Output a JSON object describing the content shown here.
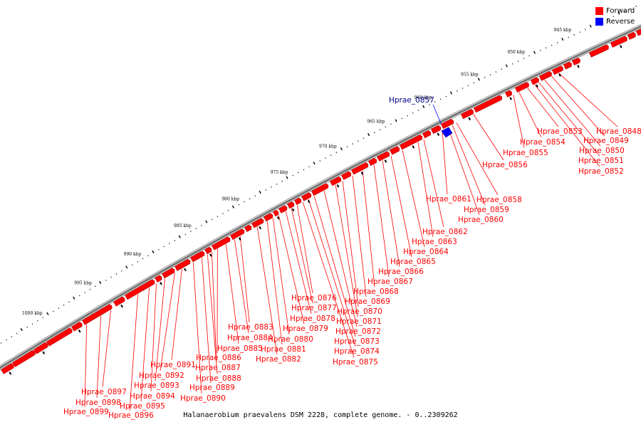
{
  "legend": {
    "forward": {
      "label": "Forward",
      "color": "#ff0000"
    },
    "reverse": {
      "label": "Reverse",
      "color": "#0000ff"
    }
  },
  "caption": "Halanaerobium praevalens DSM 2228, complete genome. - 0..2309262",
  "tick_labels": [
    "945 kbp",
    "950 kbp",
    "955 kbp",
    "960 kbp",
    "965 kbp",
    "970 kbp",
    "975 kbp",
    "980 kbp",
    "985 kbp",
    "990 kbp",
    "995 kbp",
    "1000 kbp"
  ],
  "gene_labels": [
    {
      "name": "Hprae_0848",
      "strand": "forward"
    },
    {
      "name": "Hprae_0849",
      "strand": "forward"
    },
    {
      "name": "Hprae_0850",
      "strand": "forward"
    },
    {
      "name": "Hprae_0851",
      "strand": "forward"
    },
    {
      "name": "Hprae_0852",
      "strand": "forward"
    },
    {
      "name": "Hprae_0853",
      "strand": "forward"
    },
    {
      "name": "Hprae_0854",
      "strand": "forward"
    },
    {
      "name": "Hprae_0855",
      "strand": "forward"
    },
    {
      "name": "Hprae_0856",
      "strand": "forward"
    },
    {
      "name": "Hprae_0857",
      "strand": "reverse"
    },
    {
      "name": "Hprae_0858",
      "strand": "forward"
    },
    {
      "name": "Hprae_0859",
      "strand": "forward"
    },
    {
      "name": "Hprae_0860",
      "strand": "forward"
    },
    {
      "name": "Hprae_0861",
      "strand": "forward"
    },
    {
      "name": "Hprae_0862",
      "strand": "forward"
    },
    {
      "name": "Hprae_0863",
      "strand": "forward"
    },
    {
      "name": "Hprae_0864",
      "strand": "forward"
    },
    {
      "name": "Hprae_0865",
      "strand": "forward"
    },
    {
      "name": "Hprae_0866",
      "strand": "forward"
    },
    {
      "name": "Hprae_0867",
      "strand": "forward"
    },
    {
      "name": "Hprae_0868",
      "strand": "forward"
    },
    {
      "name": "Hprae_0869",
      "strand": "forward"
    },
    {
      "name": "Hprae_0870",
      "strand": "forward"
    },
    {
      "name": "Hprae_0871",
      "strand": "forward"
    },
    {
      "name": "Hprae_0872",
      "strand": "forward"
    },
    {
      "name": "Hprae_0873",
      "strand": "forward"
    },
    {
      "name": "Hprae_0874",
      "strand": "forward"
    },
    {
      "name": "Hprae_0875",
      "strand": "forward"
    },
    {
      "name": "Hprae_0876",
      "strand": "forward"
    },
    {
      "name": "Hprae_0877",
      "strand": "forward"
    },
    {
      "name": "Hprae_0878",
      "strand": "forward"
    },
    {
      "name": "Hprae_0879",
      "strand": "forward"
    },
    {
      "name": "Hprae_0880",
      "strand": "forward"
    },
    {
      "name": "Hprae_0881",
      "strand": "forward"
    },
    {
      "name": "Hprae_0882",
      "strand": "forward"
    },
    {
      "name": "Hprae_0883",
      "strand": "forward"
    },
    {
      "name": "Hprae_0884",
      "strand": "forward"
    },
    {
      "name": "Hprae_0885",
      "strand": "forward"
    },
    {
      "name": "Hprae_0886",
      "strand": "forward"
    },
    {
      "name": "Hprae_0887",
      "strand": "forward"
    },
    {
      "name": "Hprae_0888",
      "strand": "forward"
    },
    {
      "name": "Hprae_0889",
      "strand": "forward"
    },
    {
      "name": "Hprae_0890",
      "strand": "forward"
    },
    {
      "name": "Hprae_0891",
      "strand": "forward"
    },
    {
      "name": "Hprae_0892",
      "strand": "forward"
    },
    {
      "name": "Hprae_0893",
      "strand": "forward"
    },
    {
      "name": "Hprae_0894",
      "strand": "forward"
    },
    {
      "name": "Hprae_0895",
      "strand": "forward"
    },
    {
      "name": "Hprae_0896",
      "strand": "forward"
    },
    {
      "name": "Hprae_0897",
      "strand": "forward"
    },
    {
      "name": "Hprae_0898",
      "strand": "forward"
    },
    {
      "name": "Hprae_0899",
      "strand": "forward"
    }
  ]
}
